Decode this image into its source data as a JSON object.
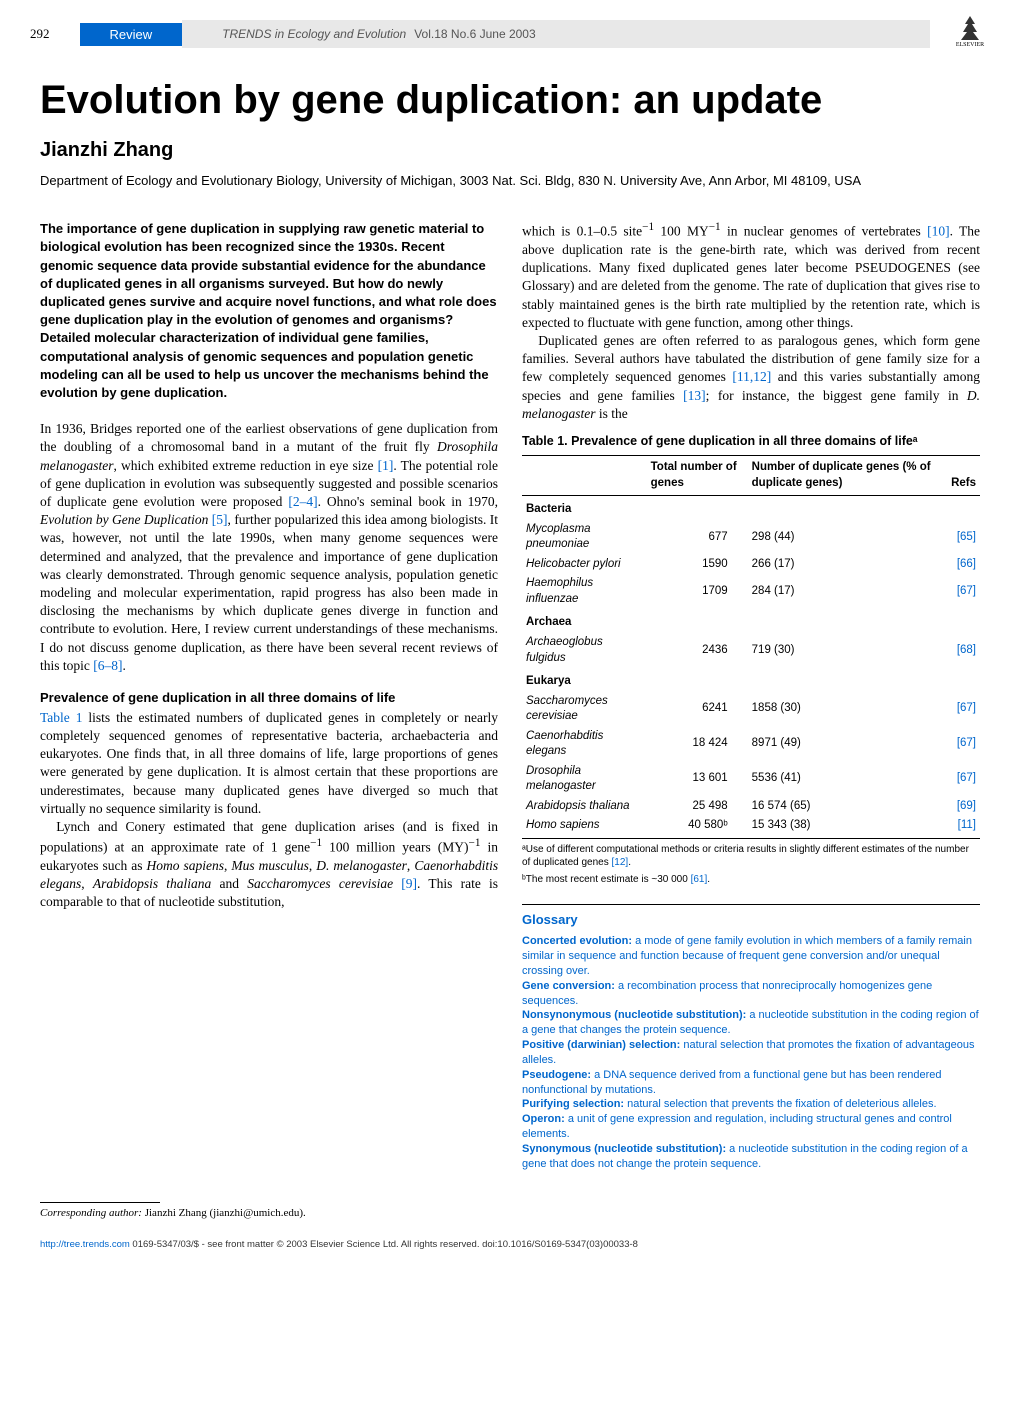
{
  "header": {
    "page_number": "292",
    "badge": "Review",
    "journal_italic": "TRENDS in Ecology and Evolution",
    "journal_issue": "Vol.18 No.6 June 2003",
    "publisher": "ELSEVIER"
  },
  "article": {
    "title": "Evolution by gene duplication: an update",
    "author": "Jianzhi Zhang",
    "affiliation": "Department of Ecology and Evolutionary Biology, University of Michigan, 3003 Nat. Sci. Bldg, 830 N. University Ave, Ann Arbor, MI 48109, USA"
  },
  "abstract": "The importance of gene duplication in supplying raw genetic material to biological evolution has been recognized since the 1930s. Recent genomic sequence data provide substantial evidence for the abundance of duplicated genes in all organisms surveyed. But how do newly duplicated genes survive and acquire novel functions, and what role does gene duplication play in the evolution of genomes and organisms? Detailed molecular characterization of individual gene families, computational analysis of genomic sequences and population genetic modeling can all be used to help us uncover the mechanisms behind the evolution by gene duplication.",
  "body": {
    "intro": {
      "p1_a": "In 1936, Bridges reported one of the earliest observations of gene duplication from the doubling of a chromosomal band in a mutant of the fruit fly ",
      "p1_dm": "Drosophila melanogaster",
      "p1_b": ", which exhibited extreme reduction in eye size ",
      "p1_ref1": "[1]",
      "p1_c": ". The potential role of gene duplication in evolution was subsequently suggested and possible scenarios of duplicate gene evolution were proposed ",
      "p1_ref2": "[2–4]",
      "p1_d": ". Ohno's seminal book in 1970, ",
      "p1_book": "Evolution by Gene Duplication",
      "p1_e": " ",
      "p1_ref3": "[5]",
      "p1_f": ", further popularized this idea among biologists. It was, however, not until the late 1990s, when many genome sequences were determined and analyzed, that the prevalence and importance of gene duplication was clearly demonstrated. Through genomic sequence analysis, population genetic modeling and molecular experimentation, rapid progress has also been made in disclosing the mechanisms by which duplicate genes diverge in function and contribute to evolution. Here, I review current understandings of these mechanisms. I do not discuss genome duplication, as there have been several recent reviews of this topic ",
      "p1_ref4": "[6–8]",
      "p1_g": "."
    },
    "prevalence": {
      "heading": "Prevalence of gene duplication in all three domains of life",
      "p1_a": "Table 1",
      "p1_b": " lists the estimated numbers of duplicated genes in completely or nearly completely sequenced genomes of representative bacteria, archaebacteria and eukaryotes. One finds that, in all three domains of life, large proportions of genes were generated by gene duplication. It is almost certain that these proportions are underestimates, because many duplicated genes have diverged so much that virtually no sequence similarity is found.",
      "p2_a": "Lynch and Conery estimated that gene duplication arises (and is fixed in populations) at an approximate rate of 1 gene",
      "p2_sup1": "−1",
      "p2_b": " 100 million years (MY)",
      "p2_sup2": "−1",
      "p2_c": " in eukaryotes such as ",
      "p2_homo": "Homo sapiens",
      "p2_d": ", ",
      "p2_mus": "Mus musculus",
      "p2_e": ", ",
      "p2_dmel": "D. melanogaster",
      "p2_f": ", ",
      "p2_cel": "Caenorhabditis elegans",
      "p2_g": ", ",
      "p2_at": "Arabidopsis thaliana",
      "p2_h": " and ",
      "p2_sc": "Saccharomyces cerevisiae",
      "p2_i": " ",
      "p2_ref": "[9]",
      "p2_j": ". This rate is comparable to that of nucleotide substitution,"
    },
    "right": {
      "p1_a": "which is 0.1–0.5 site",
      "p1_sup1": "−1",
      "p1_b": " 100 MY",
      "p1_sup2": "−1",
      "p1_c": " in nuclear genomes of vertebrates ",
      "p1_ref1": "[10]",
      "p1_d": ". The above duplication rate is the gene-birth rate, which was derived from recent duplications. Many fixed duplicated genes later become ",
      "p1_sc": "PSEUDOGENES",
      "p1_e": " (see Glossary) and are deleted from the genome. The rate of duplication that gives rise to stably maintained genes is the birth rate multiplied by the retention rate, which is expected to fluctuate with gene function, among other things.",
      "p2_a": "Duplicated genes are often referred to as paralogous genes, which form gene families. Several authors have tabulated the distribution of gene family size for a few completely sequenced genomes ",
      "p2_ref1": "[11,12]",
      "p2_b": " and this varies substantially among species and gene families ",
      "p2_ref2": "[13]",
      "p2_c": "; for instance, the biggest gene family in ",
      "p2_dmel": "D. melanogaster",
      "p2_d": " is the"
    }
  },
  "table1": {
    "caption": "Table 1. Prevalence of gene duplication in all three domains of lifeᵃ",
    "columns": [
      "",
      "Total number of genes",
      "Number of duplicate genes (% of duplicate genes)",
      "Refs"
    ],
    "groups": [
      {
        "label": "Bacteria",
        "rows": [
          {
            "name": "Mycoplasma pneumoniae",
            "total": "677",
            "dup": "298 (44)",
            "ref": "[65]"
          },
          {
            "name": "Helicobacter pylori",
            "total": "1590",
            "dup": "266 (17)",
            "ref": "[66]"
          },
          {
            "name": "Haemophilus influenzae",
            "total": "1709",
            "dup": "284 (17)",
            "ref": "[67]"
          }
        ]
      },
      {
        "label": "Archaea",
        "rows": [
          {
            "name": "Archaeoglobus fulgidus",
            "total": "2436",
            "dup": "719 (30)",
            "ref": "[68]"
          }
        ]
      },
      {
        "label": "Eukarya",
        "rows": [
          {
            "name": "Saccharomyces cerevisiae",
            "total": "6241",
            "dup": "1858 (30)",
            "ref": "[67]"
          },
          {
            "name": "Caenorhabditis elegans",
            "total": "18 424",
            "dup": "8971 (49)",
            "ref": "[67]"
          },
          {
            "name": "Drosophila melanogaster",
            "total": "13 601",
            "dup": "5536 (41)",
            "ref": "[67]"
          },
          {
            "name": "Arabidopsis thaliana",
            "total": "25 498",
            "dup": "16 574 (65)",
            "ref": "[69]"
          },
          {
            "name": "Homo sapiens",
            "total": "40 580ᵇ",
            "dup": "15 343 (38)",
            "ref": "[11]"
          }
        ]
      }
    ],
    "note_a_1": "ᵃUse of different computational methods or criteria results in slightly different estimates of the number of duplicated genes ",
    "note_a_ref": "[12]",
    "note_a_2": ".",
    "note_b_1": "ᵇThe most recent estimate is ~30 000 ",
    "note_b_ref": "[61]",
    "note_b_2": "."
  },
  "glossary": {
    "title": "Glossary",
    "entries": [
      {
        "term": "Concerted evolution:",
        "def": " a mode of gene family evolution in which members of a family remain similar in sequence and function because of frequent gene conversion and/or unequal crossing over."
      },
      {
        "term": "Gene conversion:",
        "def": " a recombination process that nonreciprocally homogenizes gene sequences."
      },
      {
        "term": "Nonsynonymous (nucleotide substitution):",
        "def": " a nucleotide substitution in the coding region of a gene that changes the protein sequence."
      },
      {
        "term": "Positive (darwinian) selection:",
        "def": " natural selection that promotes the fixation of advantageous alleles."
      },
      {
        "term": "Pseudogene:",
        "def": " a DNA sequence derived from a functional gene but has been rendered nonfunctional by mutations."
      },
      {
        "term": "Purifying selection:",
        "def": " natural selection that prevents the fixation of deleterious alleles."
      },
      {
        "term": "Operon:",
        "def": " a unit of gene expression and regulation, including structural genes and control elements."
      },
      {
        "term": "Synonymous (nucleotide substitution):",
        "def": " a nucleotide substitution in the coding region of a gene that does not change the protein sequence."
      }
    ]
  },
  "footer": {
    "corresponding_label": "Corresponding author:",
    "corresponding_text": " Jianzhi Zhang (jianzhi@umich.edu).",
    "url": "http://tree.trends.com",
    "copyright": " 0169-5347/03/$ - see front matter © 2003 Elsevier Science Ltd. All rights reserved. doi:10.1016/S0169-5347(03)00033-8"
  }
}
